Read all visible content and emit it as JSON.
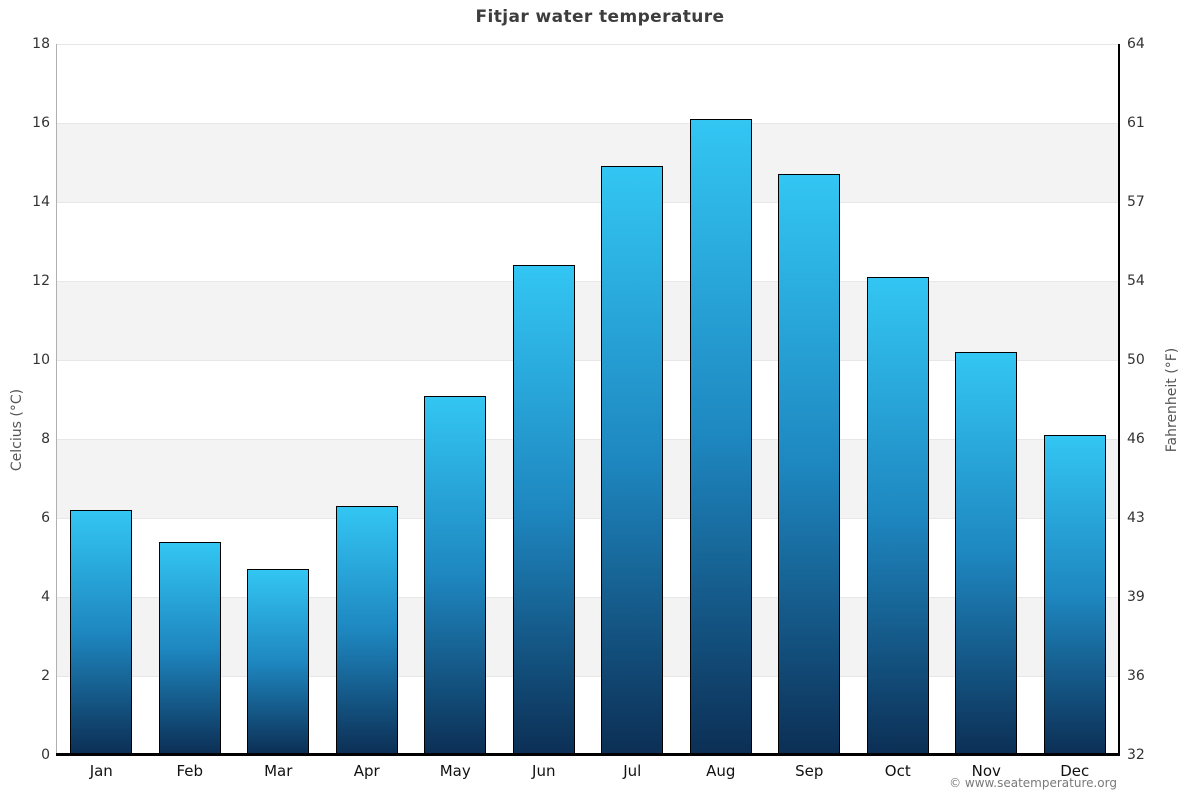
{
  "title": "Fitjar water temperature",
  "footer": {
    "credit": "© www.seatemperature.org"
  },
  "chart_data": {
    "type": "bar",
    "title": "Fitjar water temperature",
    "categories": [
      "Jan",
      "Feb",
      "Mar",
      "Apr",
      "May",
      "Jun",
      "Jul",
      "Aug",
      "Sep",
      "Oct",
      "Nov",
      "Dec"
    ],
    "values": [
      6.2,
      5.4,
      4.7,
      6.3,
      9.1,
      12.4,
      14.9,
      16.1,
      14.7,
      12.1,
      10.2,
      8.1
    ],
    "values_unit": "°C",
    "ylabel_left": "Celcius (°C)",
    "ylabel_right": "Fahrenheit (°F)",
    "ylim_celsius": [
      0,
      18
    ],
    "ylim_fahrenheit": [
      32,
      64
    ],
    "celsius_ticks": [
      0,
      2,
      4,
      6,
      8,
      10,
      12,
      14,
      16,
      18
    ],
    "fahrenheit_tick_labels": [
      "32",
      "36",
      "39",
      "43",
      "46",
      "50",
      "54",
      "57",
      "61",
      "64"
    ],
    "legend": "none",
    "grid": "horizontal alternating bands with gridlines every 2°C",
    "colors": {
      "bar_top": "#33c6f3",
      "bar_mid": "#1e87c0",
      "bar_bottom": "#0c2f55",
      "bar_border": "#000000",
      "band": "#f3f3f3",
      "band_alt": "#ffffff",
      "gridline": "#e7e7e7",
      "left_spine": "#b0b0b0",
      "right_spine": "#000000",
      "baseline": "#000000",
      "title": "#3d3d3d",
      "tick": "#333333",
      "axis_label": "#555555",
      "credit": "#7a7a7a"
    }
  }
}
